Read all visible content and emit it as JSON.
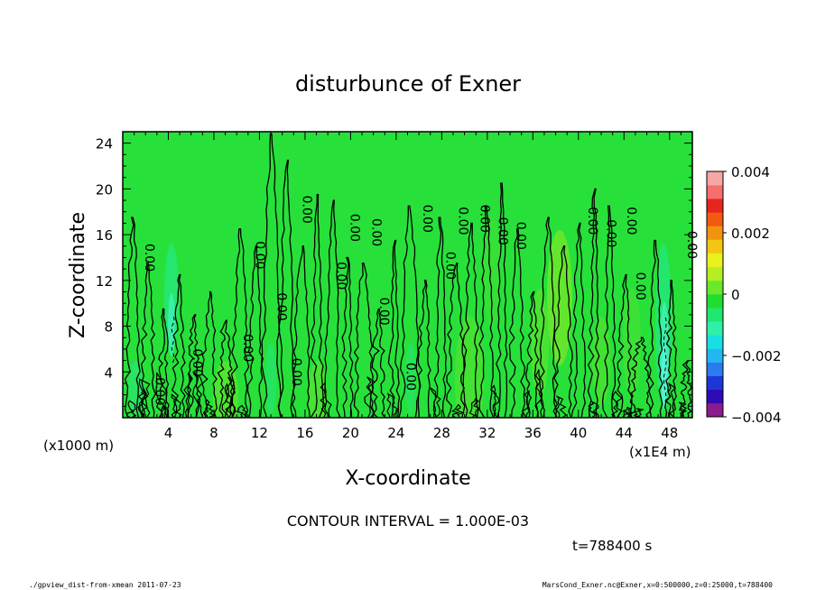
{
  "chart_data": {
    "type": "heatmap",
    "title": "disturbunce of Exner",
    "xlabel": "X-coordinate",
    "ylabel": "Z-coordinate",
    "x_unit_left": "(x1000 m)",
    "x_unit_right": "(x1E4 m)",
    "xlim": [
      0,
      50
    ],
    "ylim": [
      0,
      25
    ],
    "x_ticks": [
      4,
      8,
      12,
      16,
      20,
      24,
      28,
      32,
      36,
      40,
      44,
      48
    ],
    "y_ticks": [
      4,
      8,
      12,
      16,
      20,
      24
    ],
    "contour_interval_text": "CONTOUR INTERVAL = 1.000E-03",
    "contour_level_label": "0.00",
    "contour_label_positions": [
      {
        "x": 2.9,
        "y": 2.3
      },
      {
        "x": 2.0,
        "y": 14.0
      },
      {
        "x": 6.2,
        "y": 4.8
      },
      {
        "x": 10.6,
        "y": 6.1
      },
      {
        "x": 11.7,
        "y": 14.2
      },
      {
        "x": 13.6,
        "y": 9.7
      },
      {
        "x": 14.9,
        "y": 4.0
      },
      {
        "x": 15.8,
        "y": 18.2
      },
      {
        "x": 18.8,
        "y": 12.4
      },
      {
        "x": 20.0,
        "y": 16.6
      },
      {
        "x": 21.9,
        "y": 16.2
      },
      {
        "x": 22.6,
        "y": 9.3
      },
      {
        "x": 24.9,
        "y": 3.6
      },
      {
        "x": 26.4,
        "y": 17.4
      },
      {
        "x": 28.4,
        "y": 13.3
      },
      {
        "x": 29.5,
        "y": 17.2
      },
      {
        "x": 31.4,
        "y": 17.4
      },
      {
        "x": 33.0,
        "y": 16.3
      },
      {
        "x": 34.6,
        "y": 15.9
      },
      {
        "x": 40.9,
        "y": 17.2
      },
      {
        "x": 42.5,
        "y": 16.1
      },
      {
        "x": 44.3,
        "y": 17.2
      },
      {
        "x": 45.1,
        "y": 11.5
      },
      {
        "x": 49.6,
        "y": 15.1
      }
    ],
    "colorbar": {
      "ticks": [
        "0.004",
        "0.002",
        "0",
        "−0.002",
        "−0.004"
      ],
      "vmin": -0.004,
      "vmax": 0.004,
      "colors": [
        "#8b1c8b",
        "#2e0bb5",
        "#1d37d6",
        "#2a7bf0",
        "#22b7f2",
        "#18e0e0",
        "#2ff0a8",
        "#21e670",
        "#20dd30",
        "#6be82a",
        "#b3ef24",
        "#e9f21d",
        "#f4c614",
        "#f2930f",
        "#f05b10",
        "#e8251d",
        "#f56f6f",
        "#f7a6a6"
      ]
    },
    "field_background_color": "#27e13a",
    "contour_color": "#000000"
  },
  "footer": {
    "time_label": "t=788400 s",
    "left_note": "./gpview_dist-from-xmean  2011-07-23",
    "right_note": "MarsCond_Exner.nc@Exner,x=0:500000,z=0:25000,t=788400"
  }
}
